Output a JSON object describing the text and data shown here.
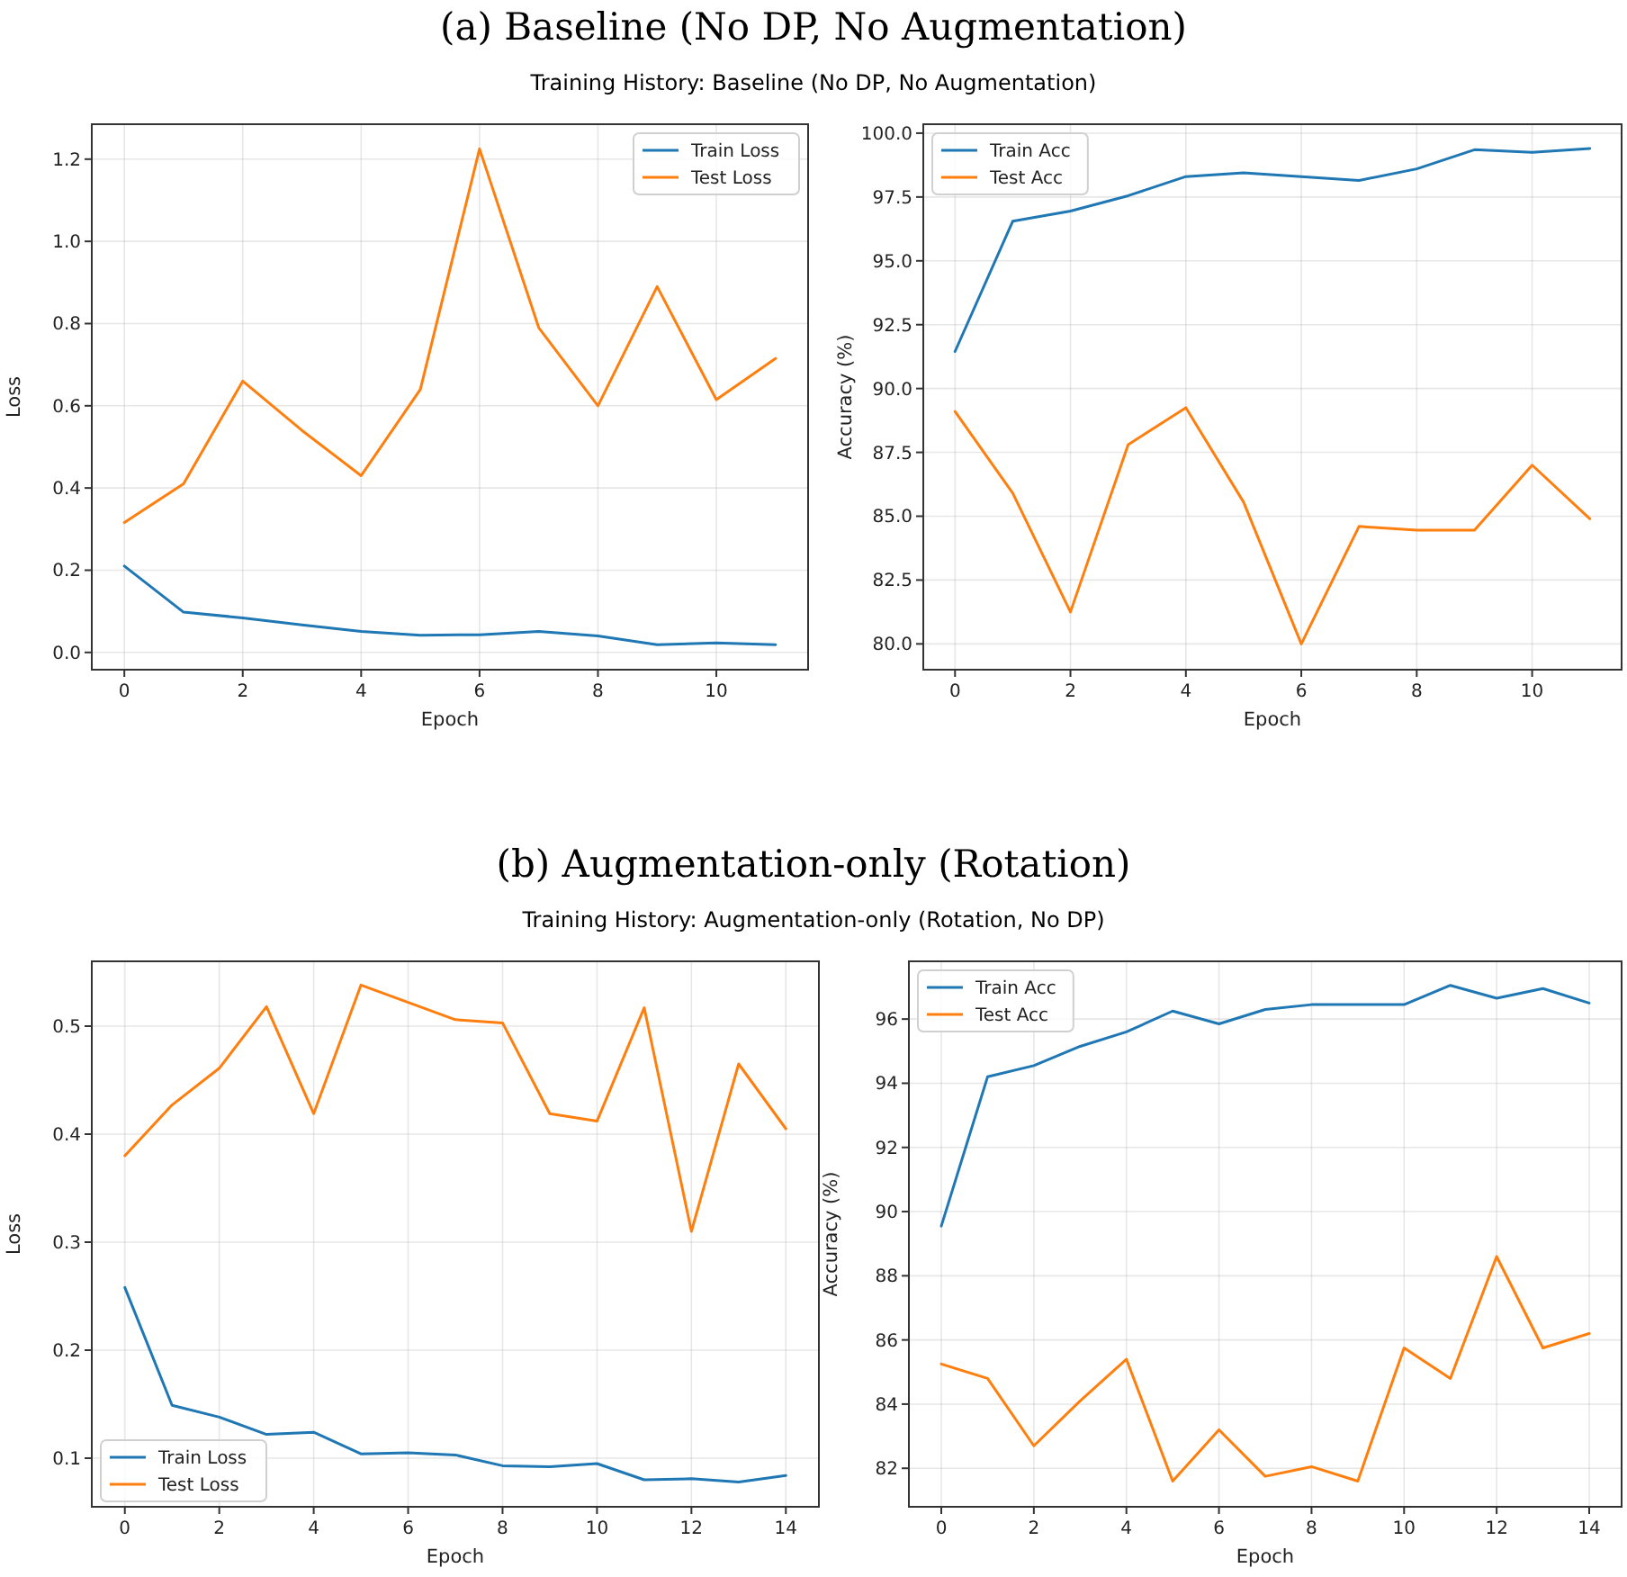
{
  "chart_data": [
    {
      "type": "line",
      "title": "(a) Baseline (No DP, No Augmentation)",
      "subtitle": "Training History: Baseline (No DP, No Augmentation)",
      "xlabel": "Epoch",
      "ylabel": "Loss",
      "x": [
        0,
        1,
        2,
        3,
        4,
        5,
        6,
        7,
        8,
        9,
        10,
        11
      ],
      "xlim": [
        -0.55,
        11.55
      ],
      "xticks": [
        0,
        2,
        4,
        6,
        8,
        10
      ],
      "ylim": [
        -0.042,
        1.285
      ],
      "yticks": [
        {
          "value": 0,
          "label": "0.0"
        },
        0.2,
        0.4,
        0.6,
        0.8,
        {
          "value": 1,
          "label": "1.0"
        },
        1.2
      ],
      "grid": true,
      "legend": "top right",
      "series": [
        {
          "name": "Train Loss",
          "color": "#1f77b4",
          "values": [
            0.21,
            0.098,
            0.084,
            0.067,
            0.051,
            0.042,
            0.043,
            0.051,
            0.04,
            0.019,
            0.023,
            0.019
          ]
        },
        {
          "name": "Test Loss",
          "color": "#ff7f0e",
          "values": [
            0.316,
            0.41,
            0.66,
            0.54,
            0.43,
            0.64,
            1.225,
            0.79,
            0.6,
            0.89,
            0.615,
            0.715
          ]
        }
      ]
    },
    {
      "type": "line",
      "xlabel": "Epoch",
      "ylabel": "Accuracy (%)",
      "x": [
        0,
        1,
        2,
        3,
        4,
        5,
        6,
        7,
        8,
        9,
        10,
        11
      ],
      "xlim": [
        -0.55,
        11.55
      ],
      "xticks": [
        0,
        2,
        4,
        6,
        8,
        10
      ],
      "ylim": [
        78.99,
        100.35
      ],
      "yticks": [
        {
          "value": 80,
          "label": "80.0"
        },
        82.5,
        {
          "value": 85,
          "label": "85.0"
        },
        87.5,
        {
          "value": 90,
          "label": "90.0"
        },
        92.5,
        {
          "value": 95,
          "label": "95.0"
        },
        97.5,
        {
          "value": 100,
          "label": "100.0"
        }
      ],
      "grid": true,
      "legend": "top left",
      "series": [
        {
          "name": "Train Acc",
          "color": "#1f77b4",
          "values": [
            91.45,
            96.55,
            96.95,
            97.55,
            98.3,
            98.45,
            98.3,
            98.15,
            98.6,
            99.35,
            99.25,
            99.4
          ]
        },
        {
          "name": "Test Acc",
          "color": "#ff7f0e",
          "values": [
            89.1,
            85.9,
            81.25,
            87.8,
            89.25,
            85.55,
            80,
            84.6,
            84.45,
            84.45,
            87,
            84.9
          ]
        }
      ]
    },
    {
      "type": "line",
      "title": "(b) Augmentation-only (Rotation)",
      "subtitle": "Training History: Augmentation-only (Rotation, No DP)",
      "xlabel": "Epoch",
      "ylabel": "Loss",
      "x": [
        0,
        1,
        2,
        3,
        4,
        5,
        6,
        7,
        8,
        9,
        10,
        11,
        12,
        13,
        14
      ],
      "xlim": [
        -0.7,
        14.7
      ],
      "xticks": [
        0,
        2,
        4,
        6,
        8,
        10,
        12,
        14
      ],
      "ylim": [
        0.055,
        0.56
      ],
      "yticks": [
        0.1,
        0.2,
        0.3,
        0.4,
        0.5
      ],
      "grid": true,
      "legend": "bottom left",
      "series": [
        {
          "name": "Train Loss",
          "color": "#1f77b4",
          "values": [
            0.258,
            0.149,
            0.138,
            0.122,
            0.124,
            0.104,
            0.105,
            0.103,
            0.093,
            0.092,
            0.095,
            0.08,
            0.081,
            0.078,
            0.084
          ]
        },
        {
          "name": "Test Loss",
          "color": "#ff7f0e",
          "values": [
            0.38,
            0.427,
            0.461,
            0.518,
            0.419,
            0.538,
            0.522,
            0.506,
            0.503,
            0.419,
            0.412,
            0.517,
            0.31,
            0.465,
            0.405
          ]
        }
      ]
    },
    {
      "type": "line",
      "xlabel": "Epoch",
      "ylabel": "Accuracy (%)",
      "x": [
        0,
        1,
        2,
        3,
        4,
        5,
        6,
        7,
        8,
        9,
        10,
        11,
        12,
        13,
        14
      ],
      "xlim": [
        -0.7,
        14.7
      ],
      "xticks": [
        0,
        2,
        4,
        6,
        8,
        10,
        12,
        14
      ],
      "ylim": [
        80.8,
        97.8
      ],
      "yticks": [
        82,
        84,
        86,
        88,
        90,
        92,
        94,
        96
      ],
      "grid": true,
      "legend": "top left",
      "series": [
        {
          "name": "Train Acc",
          "color": "#1f77b4",
          "values": [
            89.55,
            94.2,
            94.55,
            95.15,
            95.6,
            96.25,
            95.85,
            96.3,
            96.45,
            96.45,
            96.45,
            97.05,
            96.65,
            96.95,
            96.5
          ]
        },
        {
          "name": "Test Acc",
          "color": "#ff7f0e",
          "values": [
            85.25,
            84.8,
            82.7,
            84.1,
            85.4,
            81.6,
            83.2,
            81.75,
            82.05,
            81.6,
            85.75,
            84.8,
            88.6,
            85.75,
            86.2
          ]
        }
      ]
    }
  ]
}
